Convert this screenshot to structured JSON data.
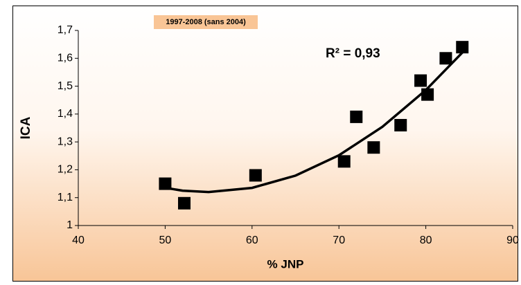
{
  "chart_data": {
    "type": "scatter",
    "subtitle": "1997-2008 (sans 2004)",
    "annotation": "R² = 0,93",
    "xlabel": "% JNP",
    "ylabel": "ICA",
    "series": [
      {
        "color": "#000000",
        "x": [
          50,
          52.2,
          60.4,
          70.6,
          72,
          74,
          77.1,
          79.4,
          80.2,
          82.3,
          84.2
        ],
        "values": [
          1.15,
          1.08,
          1.18,
          1.23,
          1.39,
          1.28,
          1.36,
          1.52,
          1.47,
          1.6,
          1.64
        ]
      }
    ],
    "trendline": {
      "color": "#000000",
      "x": [
        49.5,
        52,
        55,
        60,
        65,
        70,
        75,
        80,
        84.5
      ],
      "values": [
        1.138,
        1.125,
        1.12,
        1.135,
        1.179,
        1.252,
        1.354,
        1.486,
        1.63
      ]
    },
    "xlim": [
      40,
      90
    ],
    "xticks": [
      40,
      50,
      60,
      70,
      80,
      90
    ],
    "ylim": [
      1,
      1.7
    ],
    "yticks": [
      1,
      {
        "value": 1.1,
        "label": "1,1"
      },
      {
        "value": 1.2,
        "label": "1,2"
      },
      {
        "value": 1.3,
        "label": "1,3"
      },
      {
        "value": 1.4,
        "label": "1,4"
      },
      {
        "value": 1.5,
        "label": "1,5"
      },
      {
        "value": 1.6,
        "label": "1,6"
      },
      {
        "value": 1.7,
        "label": "1,7"
      }
    ],
    "grid": false
  }
}
